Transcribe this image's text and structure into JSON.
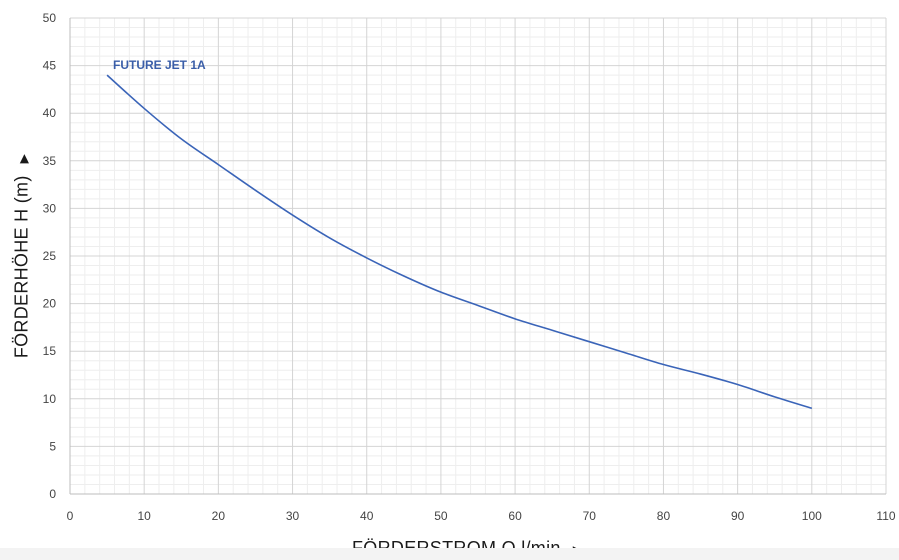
{
  "chart_data": {
    "type": "line",
    "xlabel": "FÖRDERSTROM Q  l/min",
    "ylabel": "FÖRDERHÖHE  H  (m)",
    "xlim": [
      0,
      110
    ],
    "ylim": [
      0,
      50
    ],
    "x_ticks": [
      "0",
      "10",
      "20",
      "30",
      "40",
      "50",
      "60",
      "70",
      "80",
      "90",
      "100",
      "110"
    ],
    "y_ticks": [
      "0",
      "5",
      "10",
      "15",
      "20",
      "25",
      "30",
      "35",
      "40",
      "45",
      "50"
    ],
    "grid": true,
    "series": [
      {
        "name": "FUTURE JET 1A",
        "color": "#3a64b8",
        "x": [
          5,
          10,
          15,
          20,
          25,
          30,
          35,
          40,
          45,
          50,
          55,
          60,
          65,
          70,
          75,
          80,
          85,
          90,
          95,
          100
        ],
        "y": [
          44.0,
          40.5,
          37.3,
          34.6,
          31.9,
          29.3,
          26.9,
          24.8,
          22.9,
          21.2,
          19.8,
          18.4,
          17.2,
          16.0,
          14.8,
          13.6,
          12.6,
          11.5,
          10.2,
          9.0
        ]
      }
    ]
  }
}
